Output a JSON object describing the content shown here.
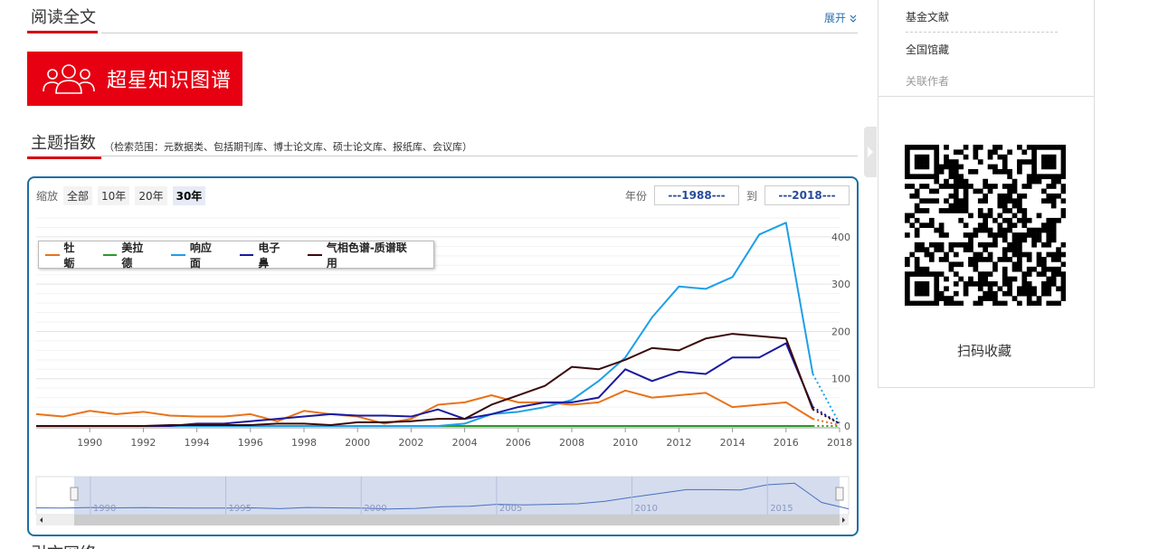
{
  "header": {
    "read_full_title": "阅读全文",
    "expand_label": "展开",
    "expand_icon": "chevron-double-down-icon"
  },
  "banner": {
    "text": "超星知识图谱",
    "icon": "people-icon",
    "color": "#e60012"
  },
  "theme": {
    "title": "主题指数",
    "scope": "（检索范围：元数据类、包括期刊库、博士论文库、硕士论文库、报纸库、会议库）"
  },
  "controls": {
    "zoom_label": "缩放",
    "zoom_options": [
      "全部",
      "10年",
      "20年",
      "30年"
    ],
    "zoom_selected": "30年",
    "year_label": "年份",
    "year_from": "---1988---",
    "to_label": "到",
    "year_to": "---2018---"
  },
  "chart_data": {
    "type": "line",
    "title": "",
    "xlabel": "",
    "ylabel": "",
    "x": [
      1988,
      1989,
      1990,
      1991,
      1992,
      1993,
      1994,
      1995,
      1996,
      1997,
      1998,
      1999,
      2000,
      2001,
      2002,
      2003,
      2004,
      2005,
      2006,
      2007,
      2008,
      2009,
      2010,
      2011,
      2012,
      2013,
      2014,
      2015,
      2016,
      2017,
      2018
    ],
    "xticks": [
      1990,
      1992,
      1994,
      1996,
      1998,
      2000,
      2002,
      2004,
      2006,
      2008,
      2010,
      2012,
      2014,
      2016,
      2018
    ],
    "yticks": [
      0,
      100,
      200,
      300,
      400
    ],
    "ylim": [
      0,
      440
    ],
    "legend_position": "top-left",
    "grid": true,
    "series": [
      {
        "name": "牡蛎",
        "color": "#e8731a",
        "values": [
          25,
          20,
          32,
          25,
          30,
          22,
          20,
          20,
          25,
          10,
          32,
          25,
          20,
          5,
          15,
          45,
          50,
          65,
          50,
          50,
          45,
          50,
          75,
          60,
          65,
          70,
          40,
          45,
          50,
          15,
          2
        ]
      },
      {
        "name": "美拉德",
        "color": "#2c9a2c",
        "values": [
          0,
          0,
          0,
          0,
          0,
          0,
          0,
          0,
          0,
          0,
          0,
          0,
          0,
          0,
          0,
          0,
          0,
          0,
          0,
          0,
          0,
          0,
          0,
          0,
          0,
          0,
          0,
          0,
          0,
          0,
          0
        ]
      },
      {
        "name": "响应面",
        "color": "#1ea0e6",
        "values": [
          0,
          0,
          0,
          0,
          0,
          0,
          0,
          0,
          0,
          0,
          0,
          0,
          0,
          0,
          0,
          0,
          5,
          25,
          30,
          40,
          55,
          95,
          145,
          230,
          295,
          290,
          315,
          405,
          430,
          110,
          5
        ]
      },
      {
        "name": "电子鼻",
        "color": "#1a1aa0",
        "values": [
          0,
          0,
          0,
          0,
          0,
          0,
          5,
          5,
          10,
          15,
          20,
          25,
          22,
          22,
          20,
          35,
          15,
          25,
          40,
          50,
          50,
          60,
          120,
          95,
          115,
          110,
          145,
          145,
          175,
          40,
          5
        ]
      },
      {
        "name": "气相色谱-质谱联用",
        "color": "#3a0a0a",
        "values": [
          0,
          0,
          0,
          0,
          0,
          2,
          2,
          2,
          2,
          5,
          5,
          2,
          8,
          8,
          10,
          15,
          15,
          45,
          65,
          85,
          125,
          120,
          140,
          165,
          160,
          185,
          195,
          190,
          185,
          35,
          5
        ]
      }
    ],
    "navigator_labels": [
      "1990",
      "1995",
      "2000",
      "2005",
      "2010",
      "2015"
    ]
  },
  "side": {
    "links": [
      "基金文献",
      "全国馆藏",
      "关联作者"
    ],
    "qr_icon": "qr-code-icon",
    "qr_label": "扫码收藏"
  },
  "footer_cut": "引文网络"
}
